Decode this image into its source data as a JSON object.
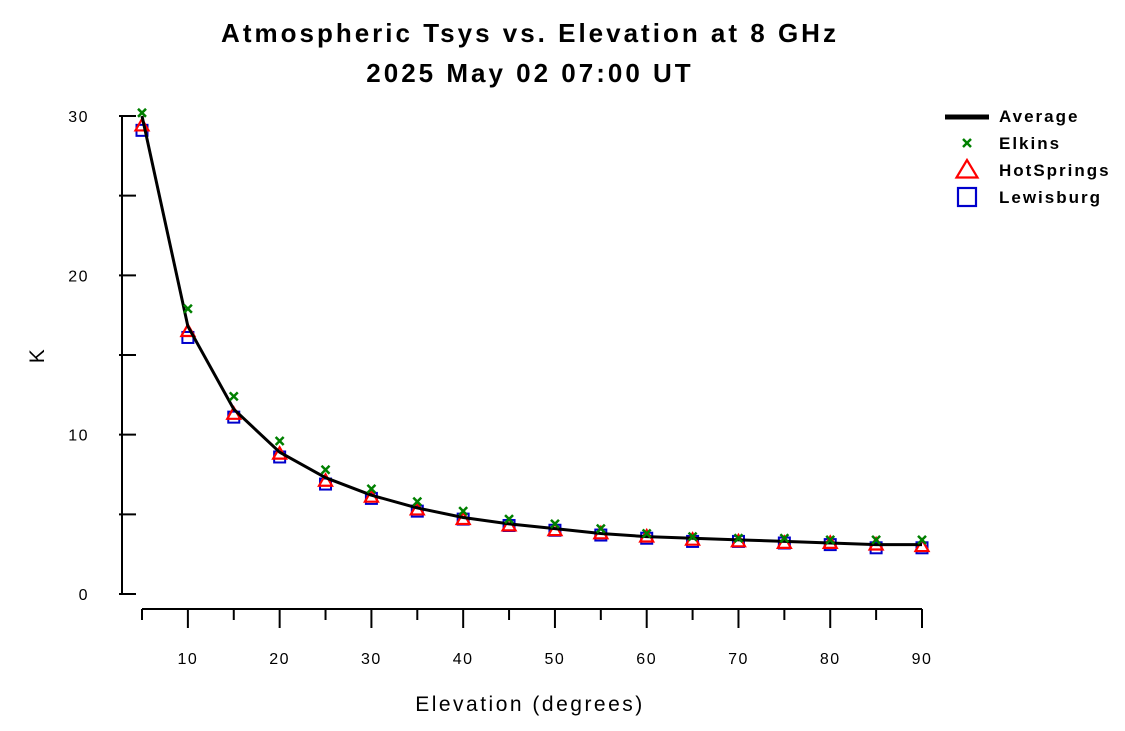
{
  "chart_data": {
    "type": "line",
    "title": "Atmospheric Tsys vs. Elevation at 8 GHz",
    "subtitle": "2025 May 02 07:00 UT",
    "xlabel": "Elevation (degrees)",
    "ylabel": "K",
    "xlim": [
      5,
      90
    ],
    "ylim": [
      0,
      30
    ],
    "x_ticks": [
      10,
      20,
      30,
      40,
      50,
      60,
      70,
      80,
      90
    ],
    "y_ticks": [
      0,
      10,
      20,
      30
    ],
    "grid": false,
    "legend_position": "top-right",
    "x": [
      5,
      10,
      15,
      20,
      25,
      30,
      35,
      40,
      45,
      50,
      55,
      60,
      65,
      70,
      75,
      80,
      85,
      90
    ],
    "series": [
      {
        "name": "Average",
        "style": "line",
        "color": "#000000",
        "values": [
          30.0,
          16.8,
          11.6,
          8.9,
          7.3,
          6.2,
          5.4,
          4.8,
          4.4,
          4.1,
          3.8,
          3.6,
          3.5,
          3.4,
          3.3,
          3.2,
          3.1,
          3.1
        ]
      },
      {
        "name": "Elkins",
        "style": "x",
        "color": "#008000",
        "values": [
          30.2,
          17.9,
          12.4,
          9.6,
          7.8,
          6.6,
          5.8,
          5.2,
          4.7,
          4.4,
          4.1,
          3.8,
          3.6,
          3.5,
          3.5,
          3.4,
          3.4,
          3.4
        ]
      },
      {
        "name": "HotSprings",
        "style": "triangle",
        "color": "#ff0000",
        "values": [
          29.4,
          16.5,
          11.3,
          8.8,
          7.1,
          6.1,
          5.3,
          4.7,
          4.3,
          4.0,
          3.8,
          3.6,
          3.4,
          3.3,
          3.2,
          3.2,
          3.1,
          3.0
        ]
      },
      {
        "name": "Lewisburg",
        "style": "square",
        "color": "#0000cc",
        "values": [
          29.1,
          16.1,
          11.1,
          8.6,
          6.9,
          6.0,
          5.2,
          4.7,
          4.3,
          4.0,
          3.7,
          3.5,
          3.3,
          3.3,
          3.2,
          3.1,
          2.9,
          2.9
        ]
      }
    ]
  }
}
